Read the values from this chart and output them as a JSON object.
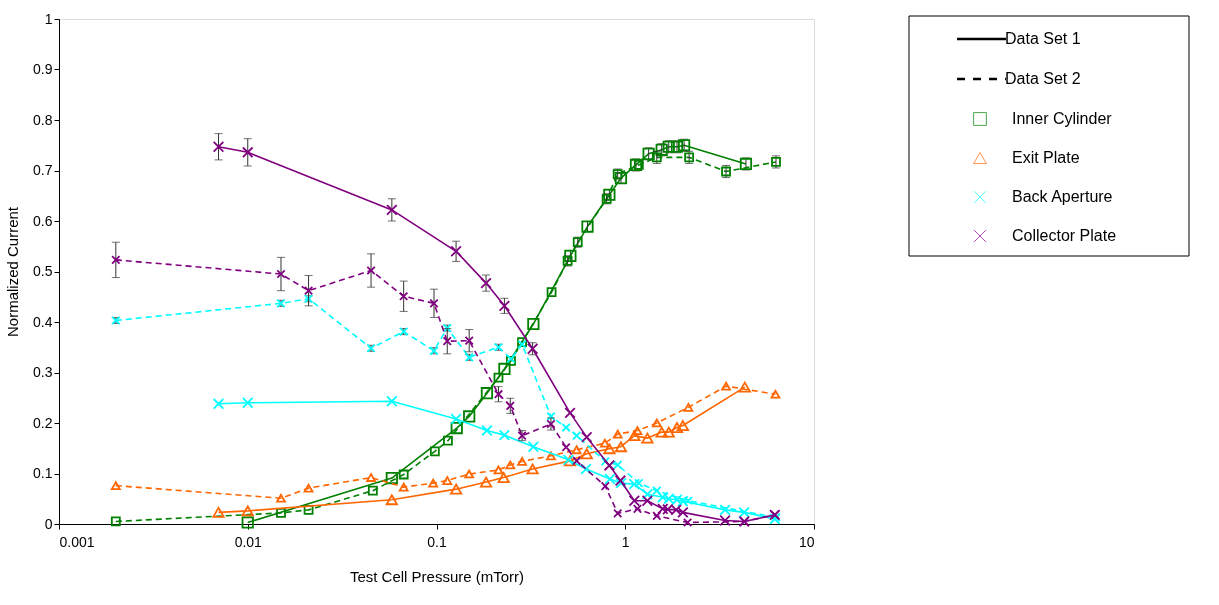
{
  "chart_data": {
    "type": "line",
    "xlabel": "Test Cell Pressure (mTorr)",
    "ylabel": "Normalized Current",
    "log": "x",
    "xlim": [
      0.001,
      10
    ],
    "xticks": [
      0.001,
      0.01,
      0.1,
      1,
      10
    ],
    "ylim": [
      0,
      1
    ],
    "yticks": [
      0,
      0.1,
      0.2,
      0.3,
      0.4,
      0.5,
      0.6,
      0.7,
      0.8,
      0.9,
      1
    ],
    "grid": false,
    "legend": "top right",
    "annotations": [
      "Data Set 1",
      "Data Set 2"
    ],
    "series": [
      {
        "name": "Inner Cylinder",
        "color": "#008000",
        "line_style": "solid",
        "marker": "square",
        "x": [
          0.01,
          0.058,
          0.128,
          0.149,
          0.185,
          0.229,
          0.326,
          0.512,
          0.631,
          0.824,
          0.949,
          1.14,
          1.33,
          1.56,
          1.7,
          1.88,
          2.05,
          4.36
        ],
        "values": [
          0.003,
          0.091,
          0.19,
          0.213,
          0.259,
          0.307,
          0.396,
          0.531,
          0.589,
          0.652,
          0.685,
          0.711,
          0.733,
          0.741,
          0.747,
          0.747,
          0.75,
          0.713
        ],
        "errors": [
          null,
          null,
          null,
          null,
          null,
          null,
          null,
          0.01,
          0.01,
          0.01,
          0.01,
          0.012,
          0.012,
          0.012,
          0.012,
          0.012,
          0.012,
          0.012
        ]
      },
      {
        "color": "#008000",
        "line_style": "dashed",
        "marker": "square",
        "x": [
          0.002,
          0.015,
          0.021,
          0.046,
          0.067,
          0.098,
          0.115,
          0.213,
          0.248,
          0.284,
          0.407,
          0.495,
          0.56,
          0.797,
          0.912,
          1.18,
          1.47,
          2.18,
          3.42,
          6.29
        ],
        "values": [
          0.005,
          0.022,
          0.028,
          0.066,
          0.098,
          0.144,
          0.165,
          0.29,
          0.323,
          0.36,
          0.459,
          0.521,
          0.558,
          0.644,
          0.693,
          0.711,
          0.726,
          0.726,
          0.698,
          0.717
        ],
        "errors": [
          null,
          null,
          null,
          null,
          null,
          null,
          null,
          null,
          null,
          null,
          null,
          0.01,
          0.01,
          0.01,
          0.01,
          null,
          0.012,
          0.012,
          0.012,
          0.012
        ]
      },
      {
        "name": "Exit Plate",
        "color": "#ff6600",
        "line_style": "solid",
        "marker": "triangle",
        "x": [
          0.007,
          0.01,
          0.058,
          0.127,
          0.183,
          0.227,
          0.323,
          0.51,
          0.625,
          0.824,
          0.949,
          1.117,
          1.31,
          1.56,
          1.7,
          1.88,
          2.02,
          4.3
        ],
        "values": [
          0.023,
          0.026,
          0.048,
          0.069,
          0.083,
          0.092,
          0.109,
          0.125,
          0.139,
          0.149,
          0.153,
          0.175,
          0.17,
          0.182,
          0.182,
          0.191,
          0.195,
          0.271
        ]
      },
      {
        "color": "#ff6600",
        "line_style": "dashed",
        "marker": "triangle",
        "x": [
          0.002,
          0.015,
          0.021,
          0.045,
          0.067,
          0.096,
          0.114,
          0.149,
          0.213,
          0.246,
          0.284,
          0.404,
          0.553,
          0.78,
          0.912,
          1.16,
          1.47,
          2.16,
          3.42,
          6.25
        ],
        "values": [
          0.076,
          0.051,
          0.071,
          0.092,
          0.073,
          0.081,
          0.086,
          0.099,
          0.107,
          0.117,
          0.124,
          0.135,
          0.147,
          0.16,
          0.178,
          0.185,
          0.2,
          0.231,
          0.273,
          0.257
        ]
      },
      {
        "name": "Back Aperture",
        "color": "#00ffff",
        "line_style": "solid",
        "marker": "cross",
        "x": [
          0.007,
          0.01,
          0.058,
          0.127,
          0.185,
          0.229,
          0.326,
          0.5,
          0.62,
          0.83,
          0.95,
          1.117,
          1.31,
          1.58,
          1.7,
          1.88,
          2.02,
          3.38,
          4.27,
          6.2
        ],
        "values": [
          0.238,
          0.24,
          0.243,
          0.208,
          0.185,
          0.176,
          0.153,
          0.127,
          0.109,
          0.089,
          0.081,
          0.079,
          0.059,
          0.053,
          0.05,
          0.048,
          0.045,
          0.028,
          0.023,
          0.01
        ]
      },
      {
        "color": "#00ffff",
        "line_style": "dashed",
        "marker": "cross",
        "x": [
          0.002,
          0.015,
          0.021,
          0.045,
          0.067,
          0.097,
          0.114,
          0.149,
          0.213,
          0.248,
          0.284,
          0.404,
          0.486,
          0.553,
          0.784,
          0.912,
          1.18,
          1.47,
          2.16,
          6.29
        ],
        "values": [
          0.403,
          0.437,
          0.446,
          0.348,
          0.381,
          0.343,
          0.388,
          0.33,
          0.35,
          0.327,
          0.356,
          0.213,
          0.191,
          0.175,
          0.124,
          0.117,
          0.081,
          0.066,
          0.046,
          0.013
        ],
        "errors": [
          0.006,
          0.006,
          0.006,
          0.006,
          0.006,
          0.006,
          0.006,
          0.006,
          0.006,
          null,
          null,
          null,
          null,
          null,
          null,
          null,
          null,
          null,
          null,
          null
        ]
      },
      {
        "name": "Collector Plate",
        "color": "#800080",
        "line_style": "solid",
        "marker": "cross",
        "x": [
          0.007,
          0.01,
          0.058,
          0.127,
          0.183,
          0.229,
          0.323,
          0.51,
          0.625,
          0.824,
          0.943,
          1.117,
          1.31,
          1.58,
          1.68,
          1.86,
          2.02,
          3.38,
          4.27,
          6.2
        ],
        "values": [
          0.747,
          0.736,
          0.622,
          0.54,
          0.477,
          0.432,
          0.347,
          0.22,
          0.172,
          0.116,
          0.086,
          0.046,
          0.046,
          0.03,
          0.029,
          0.028,
          0.023,
          0.007,
          0.005,
          0.018
        ],
        "errors": [
          0.026,
          0.027,
          0.022,
          0.02,
          0.016,
          0.015,
          0.012,
          null,
          null,
          null,
          null,
          null,
          null,
          null,
          null,
          null,
          null,
          null,
          null,
          null
        ]
      },
      {
        "color": "#800080",
        "line_style": "dashed",
        "marker": "cross",
        "x": [
          0.002,
          0.015,
          0.021,
          0.045,
          0.067,
          0.097,
          0.114,
          0.149,
          0.213,
          0.246,
          0.284,
          0.404,
          0.486,
          0.553,
          0.784,
          0.912,
          1.16,
          1.47,
          2.14,
          4.27,
          6.2
        ],
        "values": [
          0.523,
          0.495,
          0.462,
          0.502,
          0.451,
          0.437,
          0.362,
          0.363,
          0.257,
          0.234,
          0.175,
          0.198,
          0.152,
          0.125,
          0.075,
          0.021,
          0.03,
          0.016,
          0.003,
          0.005,
          0.018
        ],
        "errors": [
          0.035,
          0.033,
          0.03,
          0.033,
          0.03,
          0.028,
          0.025,
          0.022,
          0.015,
          0.015,
          0.01,
          0.012,
          null,
          null,
          null,
          null,
          null,
          null,
          null,
          null,
          null
        ]
      }
    ]
  }
}
